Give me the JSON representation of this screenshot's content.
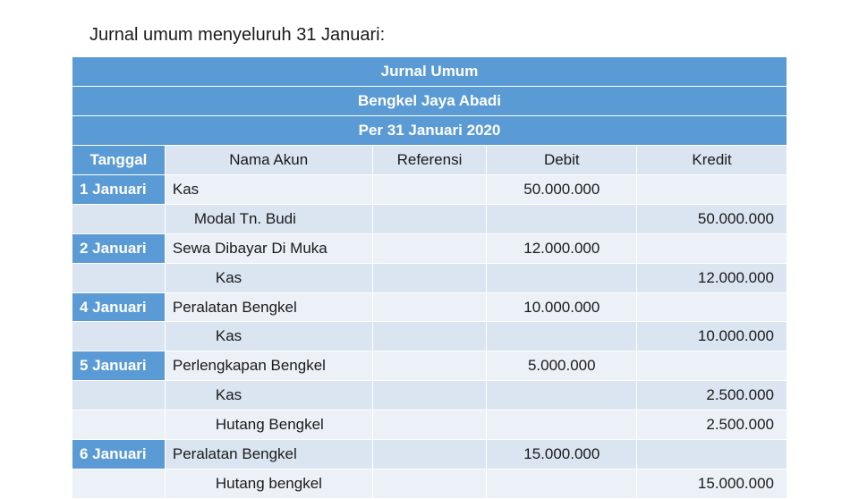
{
  "title": "Jurnal umum menyeluruh 31 Januari:",
  "colors": {
    "band_blue": "#5b9bd5",
    "row_light": "#dae5f1",
    "row_lighter": "#ecf1f7",
    "white": "#ffffff"
  },
  "header_band": [
    "Jurnal Umum",
    "Bengkel Jaya Abadi",
    "Per 31 Januari 2020"
  ],
  "columns": {
    "tanggal": "Tanggal",
    "nama_akun": "Nama Akun",
    "referensi": "Referensi",
    "debit": "Debit",
    "kredit": "Kredit"
  },
  "col_widths_pct": [
    13,
    29,
    16,
    21,
    21
  ],
  "rows": [
    {
      "tgl": "1 Januari",
      "tgl_on": true,
      "akun": "Kas",
      "indent": 0,
      "ref": "",
      "debit": "50.000.000",
      "kredit": ""
    },
    {
      "tgl": "",
      "tgl_on": false,
      "akun": "Modal Tn. Budi",
      "indent": 1,
      "ref": "",
      "debit": "",
      "kredit": "50.000.000"
    },
    {
      "tgl": "2 Januari",
      "tgl_on": true,
      "akun": "Sewa Dibayar Di Muka",
      "indent": 0,
      "ref": "",
      "debit": "12.000.000",
      "kredit": ""
    },
    {
      "tgl": "",
      "tgl_on": false,
      "akun": "Kas",
      "indent": 2,
      "ref": "",
      "debit": "",
      "kredit": "12.000.000"
    },
    {
      "tgl": "4 Januari",
      "tgl_on": true,
      "akun": "Peralatan Bengkel",
      "indent": 0,
      "ref": "",
      "debit": "10.000.000",
      "kredit": ""
    },
    {
      "tgl": "",
      "tgl_on": false,
      "akun": "Kas",
      "indent": 2,
      "ref": "",
      "debit": "",
      "kredit": "10.000.000"
    },
    {
      "tgl": "5 Januari",
      "tgl_on": true,
      "akun": "Perlengkapan Bengkel",
      "indent": 0,
      "ref": "",
      "debit": "5.000.000",
      "kredit": ""
    },
    {
      "tgl": "",
      "tgl_on": false,
      "akun": "Kas",
      "indent": 2,
      "ref": "",
      "debit": "",
      "kredit": "2.500.000"
    },
    {
      "tgl": "",
      "tgl_on": false,
      "akun": "Hutang Bengkel",
      "indent": 2,
      "ref": "",
      "debit": "",
      "kredit": "2.500.000"
    },
    {
      "tgl": "6 Januari",
      "tgl_on": true,
      "akun": "Peralatan Bengkel",
      "indent": 0,
      "ref": "",
      "debit": "15.000.000",
      "kredit": ""
    },
    {
      "tgl": "",
      "tgl_on": false,
      "akun": "Hutang bengkel",
      "indent": 2,
      "ref": "",
      "debit": "",
      "kredit": "15.000.000"
    }
  ]
}
